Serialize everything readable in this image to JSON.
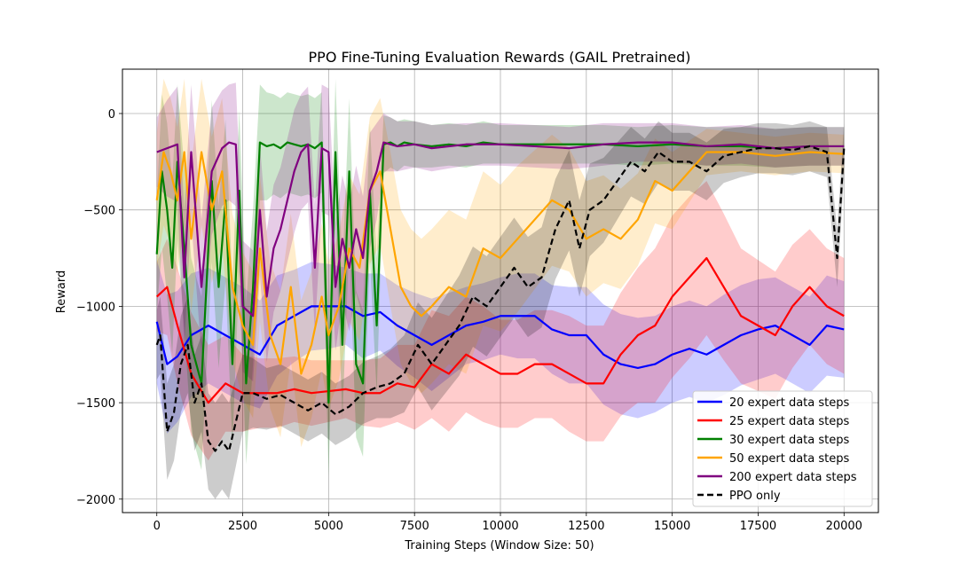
{
  "chart_data": {
    "type": "line",
    "title": "PPO Fine-Tuning Evaluation Rewards (GAIL Pretrained)",
    "xlabel": "Training Steps (Window Size: 50)",
    "ylabel": "Reward",
    "xlim": [
      -1000,
      21000
    ],
    "ylim": [
      -2070,
      230
    ],
    "xticks": [
      0,
      2500,
      5000,
      7500,
      10000,
      12500,
      15000,
      17500,
      20000
    ],
    "xtick_labels": [
      "0",
      "2500",
      "5000",
      "7500",
      "10000",
      "12500",
      "15000",
      "17500",
      "20000"
    ],
    "yticks": [
      0,
      -500,
      -1000,
      -1500,
      -2000
    ],
    "ytick_labels": [
      "0",
      "−500",
      "−1000",
      "−1500",
      "−2000"
    ],
    "grid": true,
    "legend_position": "lower-right",
    "series": [
      {
        "name": "20 expert data steps",
        "color": "#0000ff",
        "dash": "solid",
        "x": [
          0,
          300,
          600,
          1000,
          1500,
          2000,
          2500,
          3000,
          3500,
          4000,
          4500,
          5000,
          5500,
          6000,
          6500,
          7000,
          7500,
          8000,
          8500,
          9000,
          9500,
          10000,
          10500,
          11000,
          11500,
          12000,
          12500,
          13000,
          13500,
          14000,
          14500,
          15000,
          15500,
          16000,
          16500,
          17000,
          17500,
          18000,
          18500,
          19000,
          19500,
          20000
        ],
        "y": [
          -1080,
          -1300,
          -1260,
          -1150,
          -1100,
          -1150,
          -1200,
          -1250,
          -1100,
          -1050,
          -1000,
          -1000,
          -1000,
          -1050,
          -1030,
          -1100,
          -1150,
          -1200,
          -1150,
          -1100,
          -1080,
          -1050,
          -1050,
          -1050,
          -1120,
          -1150,
          -1150,
          -1250,
          -1300,
          -1320,
          -1300,
          -1250,
          -1220,
          -1250,
          -1200,
          -1150,
          -1120,
          -1100,
          -1150,
          -1200,
          -1100,
          -1120
        ],
        "band": [
          320,
          360,
          340,
          320,
          300,
          300,
          300,
          280,
          260,
          240,
          230,
          220,
          200,
          220,
          200,
          210,
          220,
          240,
          220,
          200,
          200,
          200,
          220,
          220,
          230,
          250,
          250,
          260,
          260,
          260,
          250,
          250,
          250,
          250,
          260,
          260,
          260,
          250,
          250,
          250,
          260,
          250
        ]
      },
      {
        "name": "25 expert data steps",
        "color": "#ff0000",
        "dash": "solid",
        "x": [
          0,
          300,
          600,
          1000,
          1500,
          2000,
          2500,
          3000,
          3500,
          4000,
          4500,
          5000,
          5500,
          6000,
          6500,
          7000,
          7500,
          8000,
          8500,
          9000,
          9500,
          10000,
          10500,
          11000,
          11500,
          12000,
          12500,
          13000,
          13500,
          14000,
          14500,
          15000,
          15500,
          16000,
          16500,
          17000,
          17500,
          18000,
          18500,
          19000,
          19500,
          20000
        ],
        "y": [
          -950,
          -900,
          -1100,
          -1350,
          -1500,
          -1400,
          -1450,
          -1450,
          -1450,
          -1430,
          -1450,
          -1440,
          -1430,
          -1450,
          -1450,
          -1400,
          -1420,
          -1300,
          -1350,
          -1250,
          -1300,
          -1350,
          -1350,
          -1300,
          -1300,
          -1350,
          -1400,
          -1400,
          -1250,
          -1150,
          -1100,
          -950,
          -850,
          -750,
          -900,
          -1050,
          -1100,
          -1150,
          -1000,
          -900,
          -1000,
          -1050
        ],
        "band": [
          180,
          250,
          300,
          320,
          300,
          250,
          200,
          180,
          180,
          170,
          170,
          160,
          150,
          170,
          180,
          200,
          220,
          280,
          300,
          300,
          300,
          280,
          280,
          280,
          280,
          300,
          300,
          300,
          320,
          350,
          400,
          420,
          420,
          400,
          380,
          350,
          340,
          330,
          320,
          300,
          300,
          300
        ]
      },
      {
        "name": "30 expert data steps",
        "color": "#008000",
        "dash": "solid",
        "x": [
          0,
          150,
          300,
          450,
          600,
          800,
          1000,
          1300,
          1600,
          1800,
          2000,
          2200,
          2400,
          2600,
          2800,
          3000,
          3200,
          3400,
          3600,
          3800,
          4000,
          4200,
          4400,
          4600,
          4800,
          5000,
          5200,
          5400,
          5600,
          5800,
          6000,
          6200,
          6400,
          6600,
          6800,
          7000,
          7200,
          7500,
          8000,
          8500,
          9000,
          9500,
          10000,
          11000,
          12000,
          13000,
          14000,
          15000,
          16000,
          17000,
          18000,
          19000,
          20000
        ],
        "y": [
          -730,
          -300,
          -500,
          -800,
          -250,
          -700,
          -1200,
          -1400,
          -350,
          -900,
          -450,
          -1300,
          -400,
          -1400,
          -900,
          -150,
          -170,
          -160,
          -180,
          -150,
          -160,
          -170,
          -160,
          -180,
          -150,
          -1500,
          -200,
          -1200,
          -300,
          -1300,
          -1400,
          -400,
          -1100,
          -160,
          -150,
          -170,
          -150,
          -160,
          -170,
          -160,
          -170,
          -150,
          -160,
          -160,
          -160,
          -160,
          -170,
          -160,
          -170,
          -170,
          -180,
          -170,
          -170
        ],
        "band": [
          300,
          400,
          450,
          450,
          400,
          420,
          450,
          450,
          420,
          420,
          420,
          420,
          420,
          420,
          400,
          300,
          280,
          260,
          260,
          260,
          260,
          260,
          260,
          260,
          260,
          380,
          380,
          380,
          380,
          380,
          380,
          350,
          350,
          150,
          130,
          130,
          120,
          120,
          110,
          110,
          110,
          110,
          100,
          100,
          100,
          100,
          100,
          100,
          100,
          100,
          100,
          100,
          100
        ]
      },
      {
        "name": "50 expert data steps",
        "color": "#ffa500",
        "dash": "solid",
        "x": [
          0,
          200,
          400,
          600,
          800,
          1000,
          1300,
          1600,
          1900,
          2200,
          2500,
          2800,
          3000,
          3300,
          3600,
          3900,
          4200,
          4500,
          4800,
          5000,
          5300,
          5600,
          5900,
          6200,
          6500,
          6800,
          7100,
          7400,
          7700,
          8000,
          8500,
          9000,
          9500,
          10000,
          10500,
          11000,
          11500,
          12000,
          12500,
          13000,
          13500,
          14000,
          14500,
          15000,
          16000,
          17000,
          18000,
          19000,
          20000
        ],
        "y": [
          -450,
          -200,
          -300,
          -450,
          -200,
          -650,
          -200,
          -500,
          -300,
          -900,
          -1100,
          -1200,
          -700,
          -1150,
          -1300,
          -900,
          -1350,
          -1200,
          -950,
          -1150,
          -1000,
          -700,
          -800,
          -400,
          -300,
          -600,
          -900,
          -1000,
          -1050,
          -1000,
          -900,
          -950,
          -700,
          -750,
          -650,
          -550,
          -450,
          -500,
          -650,
          -600,
          -650,
          -550,
          -350,
          -400,
          -200,
          -200,
          -220,
          -200,
          -210
        ],
        "band": [
          350,
          380,
          380,
          380,
          380,
          380,
          380,
          380,
          380,
          380,
          380,
          380,
          380,
          380,
          380,
          380,
          380,
          380,
          380,
          380,
          380,
          380,
          380,
          380,
          380,
          400,
          400,
          400,
          400,
          400,
          400,
          400,
          400,
          380,
          380,
          360,
          340,
          320,
          300,
          280,
          260,
          240,
          220,
          200,
          120,
          100,
          100,
          100,
          100
        ]
      },
      {
        "name": "200 expert data steps",
        "color": "#800080",
        "dash": "solid",
        "x": [
          0,
          300,
          600,
          800,
          1000,
          1300,
          1600,
          1900,
          2100,
          2300,
          2500,
          2800,
          3000,
          3200,
          3400,
          3600,
          3800,
          4000,
          4200,
          4400,
          4600,
          4800,
          5000,
          5200,
          5400,
          5600,
          5800,
          6000,
          6200,
          6400,
          6600,
          7000,
          7500,
          8000,
          9000,
          10000,
          11000,
          12000,
          13000,
          14000,
          15000,
          16000,
          17000,
          18000,
          19000,
          20000
        ],
        "y": [
          -200,
          -180,
          -160,
          -850,
          -200,
          -900,
          -300,
          -180,
          -150,
          -160,
          -1000,
          -1050,
          -500,
          -950,
          -700,
          -600,
          -450,
          -300,
          -200,
          -160,
          -800,
          -180,
          -200,
          -900,
          -650,
          -800,
          -600,
          -750,
          -400,
          -300,
          -150,
          -170,
          -160,
          -180,
          -160,
          -160,
          -170,
          -180,
          -160,
          -150,
          -150,
          -170,
          -160,
          -180,
          -170,
          -170
        ],
        "band": [
          180,
          250,
          300,
          350,
          350,
          350,
          330,
          300,
          300,
          320,
          340,
          340,
          340,
          340,
          330,
          320,
          320,
          320,
          300,
          300,
          330,
          330,
          330,
          330,
          330,
          330,
          330,
          320,
          300,
          250,
          150,
          130,
          120,
          120,
          110,
          110,
          110,
          110,
          110,
          100,
          100,
          100,
          100,
          100,
          100,
          100
        ]
      },
      {
        "name": "PPO only",
        "color": "#000000",
        "dash": "dashed",
        "x": [
          0,
          100,
          300,
          500,
          700,
          900,
          1100,
          1300,
          1500,
          1700,
          1900,
          2100,
          2300,
          2500,
          2800,
          3200,
          3600,
          4000,
          4400,
          4800,
          5200,
          5600,
          6000,
          6400,
          6800,
          7200,
          7600,
          8000,
          8400,
          8800,
          9200,
          9600,
          10000,
          10400,
          10800,
          11200,
          11600,
          12000,
          12300,
          12600,
          13000,
          13400,
          13800,
          14200,
          14600,
          15000,
          15500,
          16000,
          16500,
          17000,
          17500,
          18000,
          18500,
          19000,
          19500,
          19800,
          20000
        ],
        "y": [
          -1200,
          -1150,
          -1650,
          -1550,
          -1300,
          -1200,
          -1500,
          -1400,
          -1700,
          -1750,
          -1700,
          -1750,
          -1600,
          -1450,
          -1450,
          -1480,
          -1460,
          -1500,
          -1540,
          -1500,
          -1560,
          -1520,
          -1450,
          -1420,
          -1400,
          -1350,
          -1200,
          -1300,
          -1200,
          -1100,
          -950,
          -1000,
          -900,
          -800,
          -900,
          -850,
          -600,
          -450,
          -700,
          -500,
          -450,
          -350,
          -250,
          -300,
          -200,
          -250,
          -250,
          -300,
          -220,
          -200,
          -180,
          -180,
          -190,
          -170,
          -200,
          -750,
          -180
        ],
        "band": [
          180,
          200,
          250,
          250,
          250,
          250,
          250,
          250,
          250,
          250,
          250,
          250,
          230,
          200,
          180,
          160,
          160,
          160,
          160,
          160,
          160,
          160,
          160,
          160,
          180,
          200,
          220,
          240,
          250,
          260,
          260,
          260,
          260,
          260,
          260,
          260,
          260,
          260,
          250,
          240,
          220,
          200,
          180,
          170,
          160,
          150,
          150,
          150,
          140,
          130,
          130,
          130,
          130,
          130,
          130,
          150,
          130
        ]
      }
    ]
  }
}
